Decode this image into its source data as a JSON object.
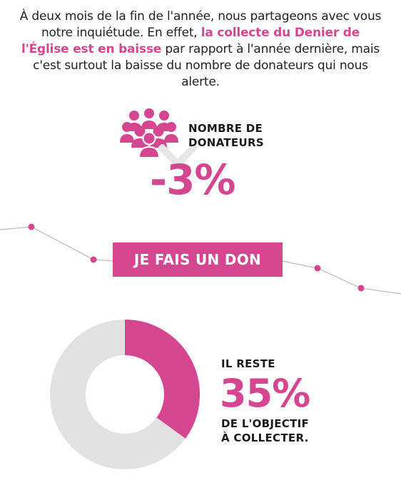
{
  "intro": {
    "text_before": "À deux mois de la fin de l'année, nous partageons avec vous notre inquiétude. En effet, ",
    "highlight": "la collecte du Denier de l'Église est en baisse",
    "text_after": " par rapport à l'année dernière, mais c'est surtout la baisse du nombre de donateurs qui nous alerte."
  },
  "donors": {
    "label_line1": "NOMBRE DE",
    "label_line2": "DONATEURS",
    "value": "-3%"
  },
  "cta": {
    "label": "JE FAIS UN DON"
  },
  "goal": {
    "label_pre": "IL RESTE",
    "value": "35%",
    "label_post_line1": "DE L'OBJECTIF",
    "label_post_line2": "À COLLECTER.",
    "remaining_fraction": 0.35
  },
  "colors": {
    "accent": "#d4468f",
    "ring_background": "#e2e2e2",
    "line": "#bbbbbb",
    "text": "#1a1a1a"
  },
  "icons": {
    "people": "group-people-icon",
    "chevron": "chevron-down-icon"
  }
}
